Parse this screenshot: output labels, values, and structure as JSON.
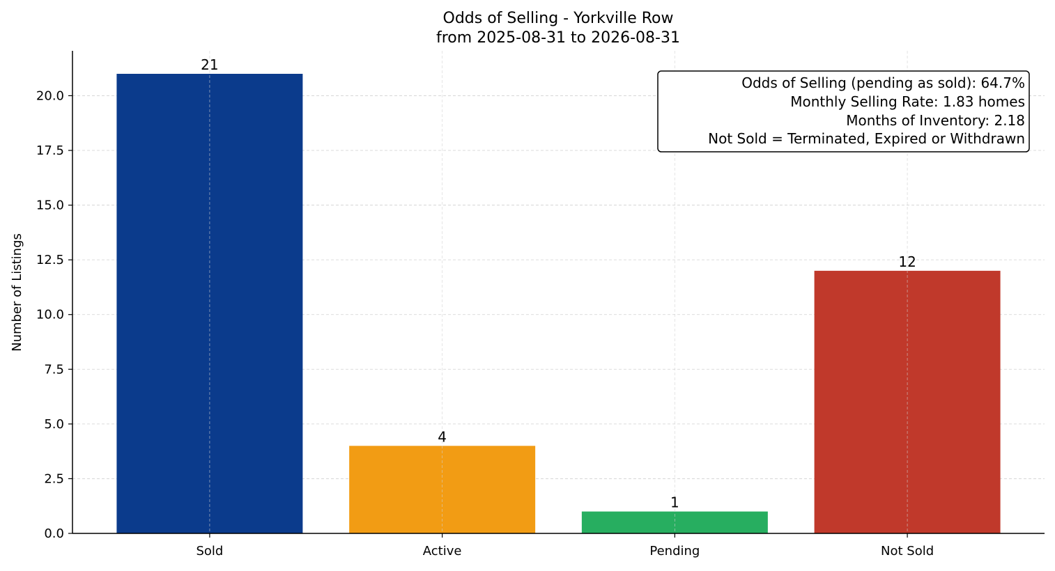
{
  "chart_data": {
    "type": "bar",
    "title": "Odds of Selling - Yorkville Row",
    "subtitle": "from 2025-08-31 to 2026-08-31",
    "xlabel": "",
    "ylabel": "Number of Listings",
    "categories": [
      "Sold",
      "Active",
      "Pending",
      "Not Sold"
    ],
    "values": [
      21,
      4,
      1,
      12
    ],
    "value_labels": [
      "21",
      "4",
      "1",
      "12"
    ],
    "colors": [
      "#0b3b8c",
      "#f29c14",
      "#27ae60",
      "#c0392b"
    ],
    "ylim": [
      0,
      22.05
    ],
    "yticks": [
      0.0,
      2.5,
      5.0,
      7.5,
      10.0,
      12.5,
      15.0,
      17.5,
      20.0
    ],
    "ytick_labels": [
      "0.0",
      "2.5",
      "5.0",
      "7.5",
      "10.0",
      "12.5",
      "15.0",
      "17.5",
      "20.0"
    ],
    "grid": true,
    "info_box": {
      "placement": "top-right",
      "lines": [
        "Odds of Selling (pending as sold): 64.7%",
        "Monthly Selling Rate: 1.83 homes",
        "Months of Inventory: 2.18",
        "Not Sold = Terminated, Expired or Withdrawn"
      ]
    }
  }
}
